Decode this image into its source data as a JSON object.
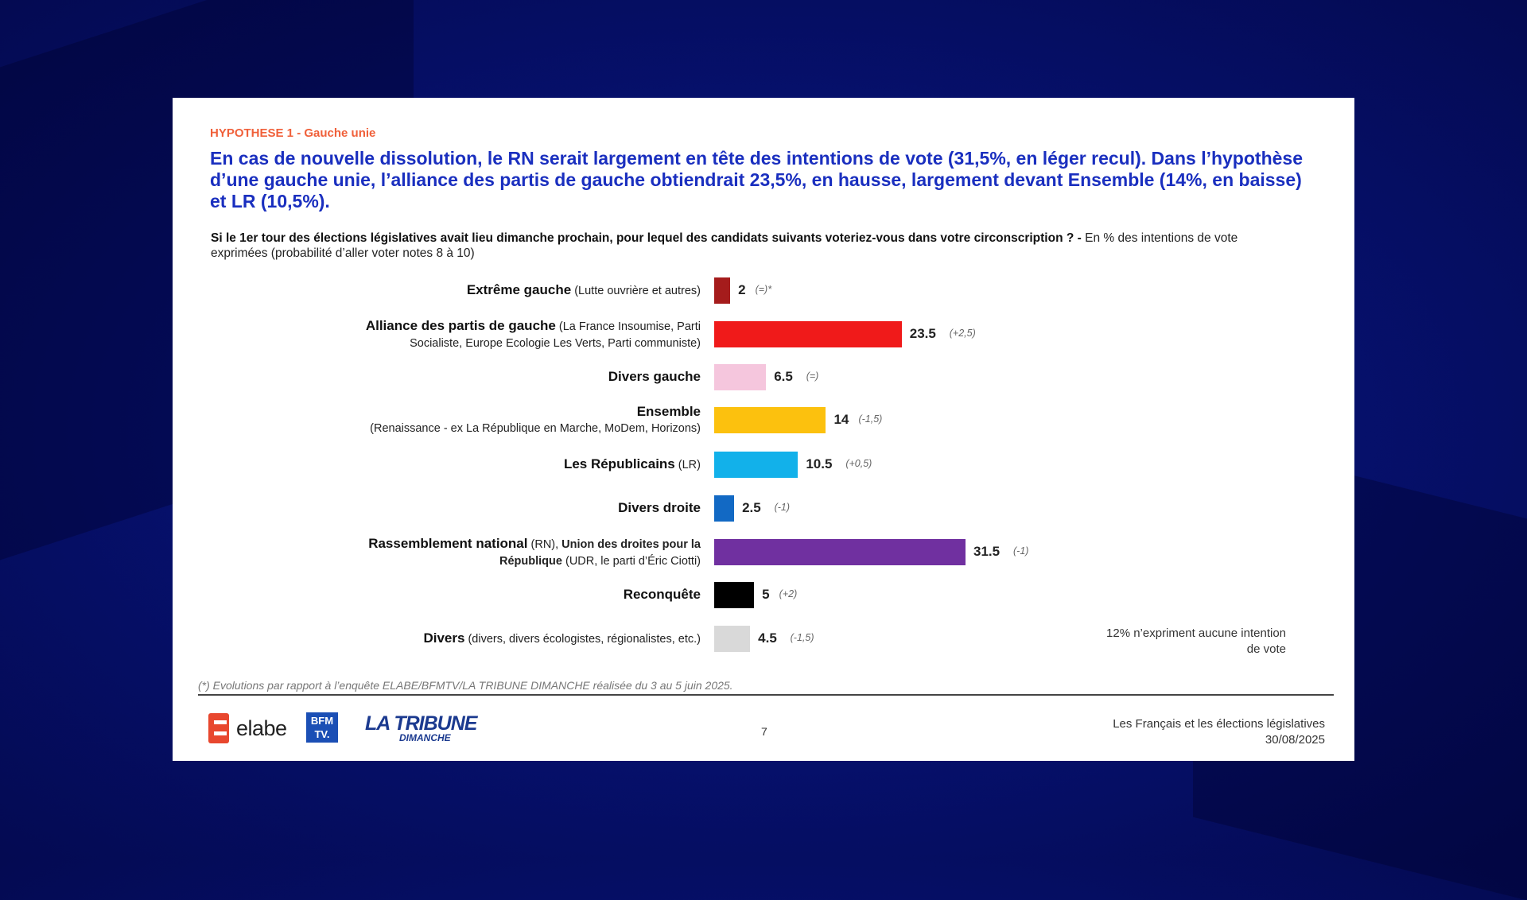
{
  "slide": {
    "hypothesis": "HYPOTHESE 1 -  Gauche unie",
    "headline": "En cas de nouvelle dissolution, le RN serait largement en tête des intentions de vote (31,5%, en léger recul). Dans l’hypothèse d’une gauche unie, l’alliance des partis de gauche obtiendrait 23,5%, en hausse, largement devant Ensemble (14%, en baisse) et LR (10,5%).",
    "question_bold": "Si le 1er tour des élections législatives avait lieu dimanche prochain, pour lequel des candidats suivants voteriez-vous dans votre circonscription ? -",
    "question_rest": " En % des intentions de vote exprimées (probabilité d’aller voter notes 8 à 10)",
    "abstention": "12% n’expriment aucune intention de vote",
    "footnote": "(*) Evolutions par rapport à l’enquête ELABE/BFMTV/LA TRIBUNE DIMANCHE réalisée du 3 au 5 juin 2025.",
    "page_number": "7",
    "report_title": "Les Français et les élections législatives",
    "report_date": "30/08/2025",
    "logos": {
      "elabe": "elabe",
      "bfm_line1": "BFM",
      "bfm_line2": "TV.",
      "tribune_line1": "LA TRIBUNE",
      "tribune_line2": "DIMANCHE"
    }
  },
  "chart_data": {
    "type": "bar",
    "orientation": "horizontal",
    "xlim": [
      0,
      31.5
    ],
    "categories": [
      {
        "main": "Extrême gauche",
        "detail": " (Lutte ouvrière et autres)"
      },
      {
        "main": "Alliance des partis de gauche",
        "detail": " (La France Insoumise, Parti Socialiste, Europe Ecologie Les Verts, Parti communiste)"
      },
      {
        "main": "Divers gauche",
        "detail": ""
      },
      {
        "main": "Ensemble",
        "detail": "(Renaissance - ex La République en Marche, MoDem, Horizons)"
      },
      {
        "main": "Les Républicains",
        "detail": " (LR)"
      },
      {
        "main": "Divers droite",
        "detail": ""
      },
      {
        "main": "Rassemblement national",
        "detail": " (RN), Union des droites pour la République (UDR, le parti d’Éric Ciotti)"
      },
      {
        "main": "Reconquête",
        "detail": ""
      },
      {
        "main": "Divers",
        "detail": " (divers, divers écologistes, régionalistes, etc.)"
      }
    ],
    "values": [
      2,
      23.5,
      6.5,
      14,
      10.5,
      2.5,
      31.5,
      5,
      4.5
    ],
    "value_labels": [
      "2",
      "23.5",
      "6.5",
      "14",
      "10.5",
      "2.5",
      "31.5",
      "5",
      "4.5"
    ],
    "changes": [
      "(=)*",
      "(+2,5)",
      "(=)",
      "(-1,5)",
      "(+0,5)",
      "(-1)",
      "(-1)",
      "(+2)",
      "(-1,5)"
    ],
    "colors": [
      "#a51c1c",
      "#f01a1a",
      "#f5c6dd",
      "#fcc10e",
      "#12b1ea",
      "#1269c4",
      "#7030a0",
      "#000000",
      "#d9d9d9"
    ]
  }
}
